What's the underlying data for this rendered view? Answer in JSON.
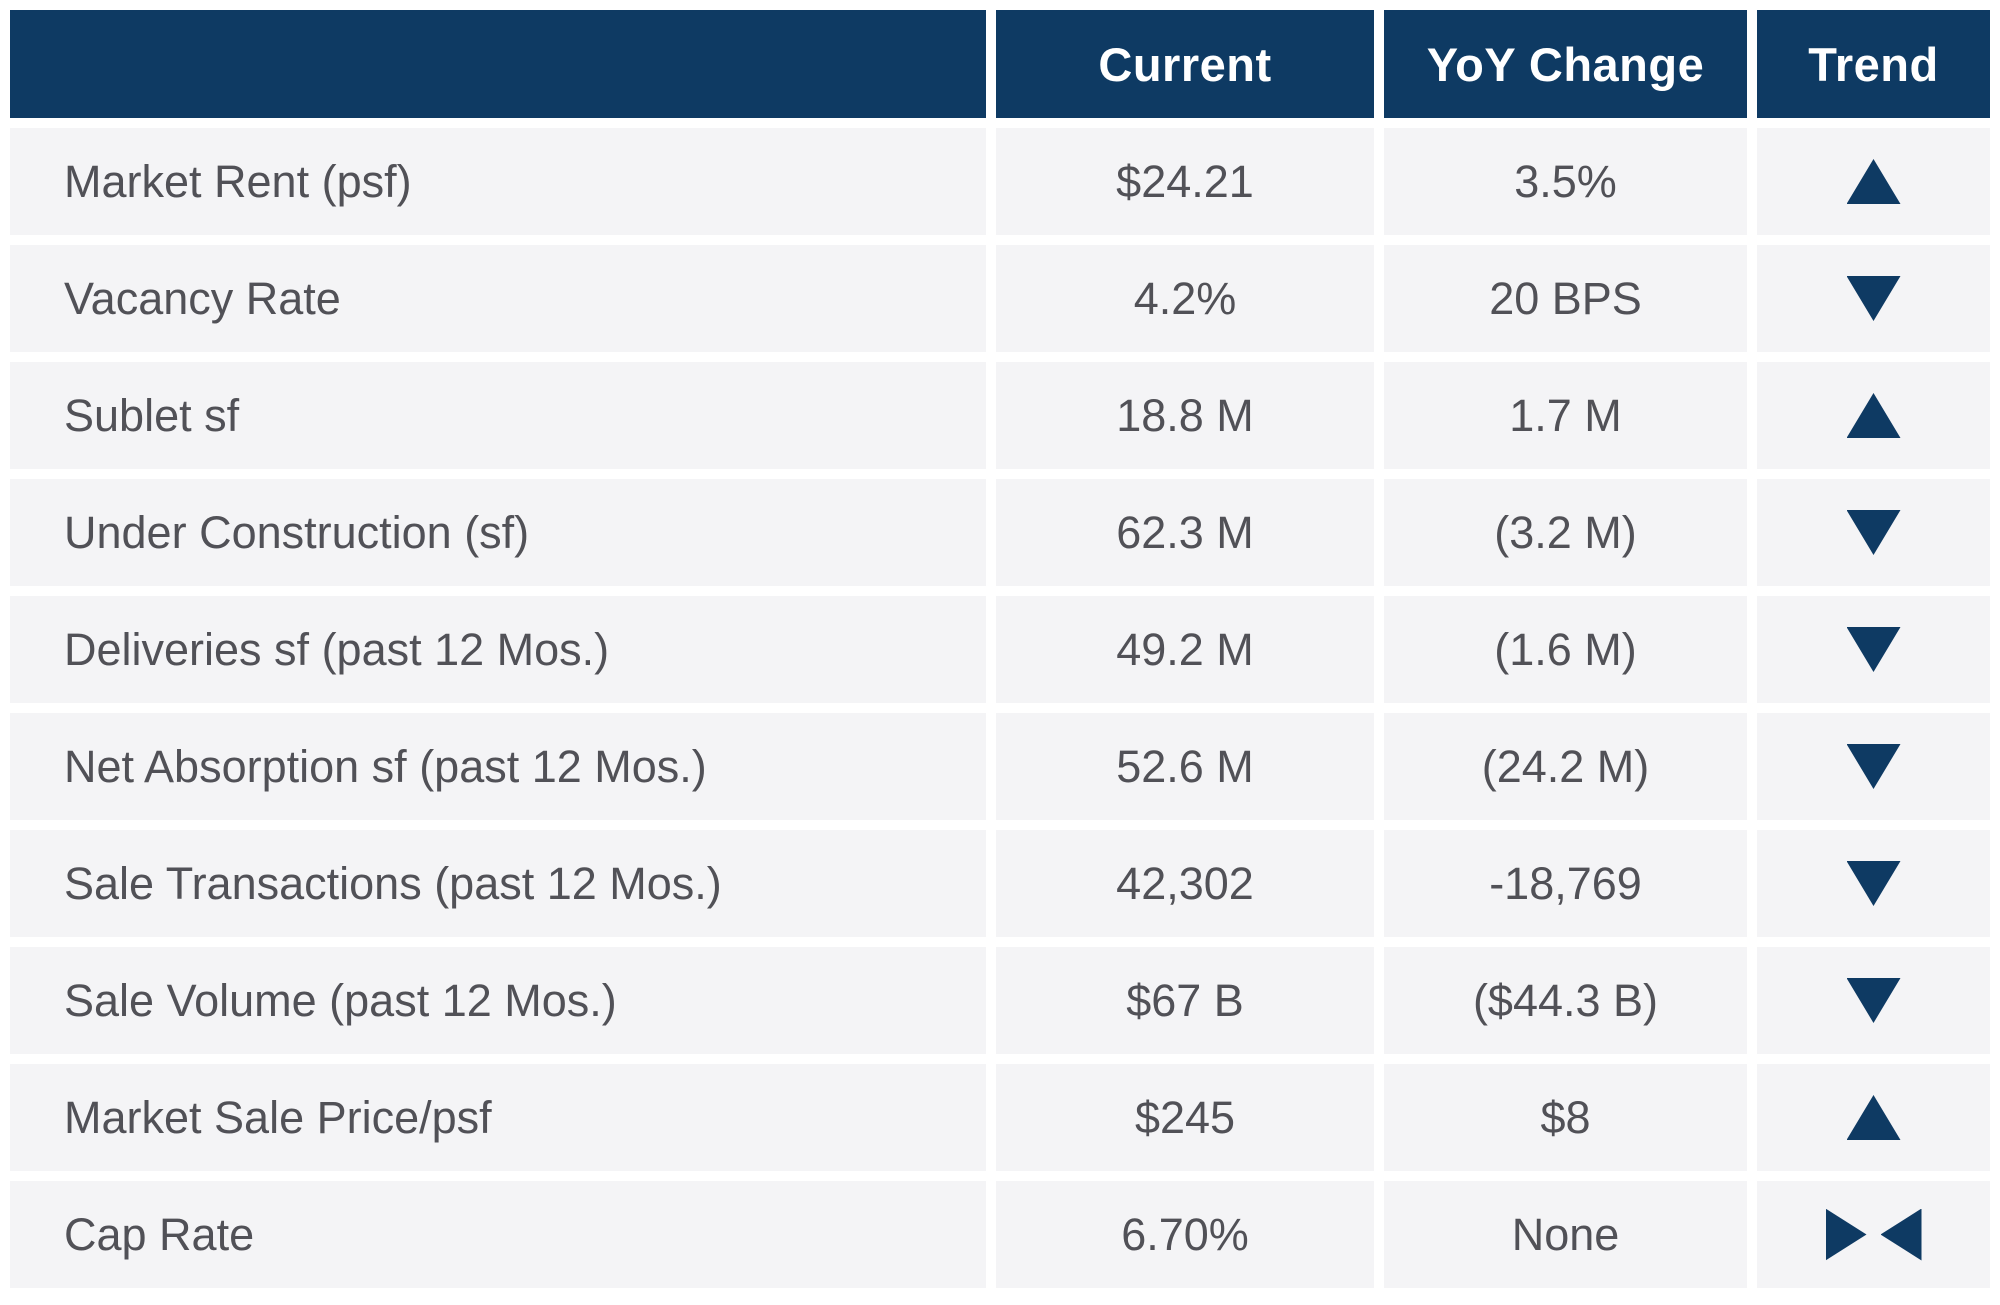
{
  "chart_data": {
    "type": "table",
    "columns": [
      "",
      "Current",
      "YoY Change",
      "Trend"
    ],
    "rows": [
      {
        "label": "Market Rent (psf)",
        "current": "$24.21",
        "yoy_change": "3.5%",
        "trend": "up"
      },
      {
        "label": "Vacancy Rate",
        "current": "4.2%",
        "yoy_change": "20 BPS",
        "trend": "down"
      },
      {
        "label": "Sublet sf",
        "current": "18.8 M",
        "yoy_change": "1.7 M",
        "trend": "up"
      },
      {
        "label": "Under Construction (sf)",
        "current": "62.3 M",
        "yoy_change": "(3.2 M)",
        "trend": "down"
      },
      {
        "label": "Deliveries sf (past 12 Mos.)",
        "current": "49.2 M",
        "yoy_change": "(1.6 M)",
        "trend": "down"
      },
      {
        "label": "Net Absorption sf (past 12 Mos.)",
        "current": "52.6 M",
        "yoy_change": "(24.2 M)",
        "trend": "down"
      },
      {
        "label": "Sale Transactions (past 12 Mos.)",
        "current": "42,302",
        "yoy_change": "-18,769",
        "trend": "down"
      },
      {
        "label": "Sale Volume (past 12 Mos.)",
        "current": "$67 B",
        "yoy_change": "($44.3 B)",
        "trend": "down"
      },
      {
        "label": "Market Sale Price/psf",
        "current": "$245",
        "yoy_change": "$8",
        "trend": "up"
      },
      {
        "label": "Cap Rate",
        "current": "6.70%",
        "yoy_change": "None",
        "trend": "flat"
      }
    ],
    "colors": {
      "header_bg": "#0e3a63",
      "row_bg": "#f4f4f6",
      "trend_icon": "#0e3a63",
      "body_text": "#515157",
      "header_text": "#ffffff"
    },
    "legend_position": "none",
    "grid": "off"
  }
}
